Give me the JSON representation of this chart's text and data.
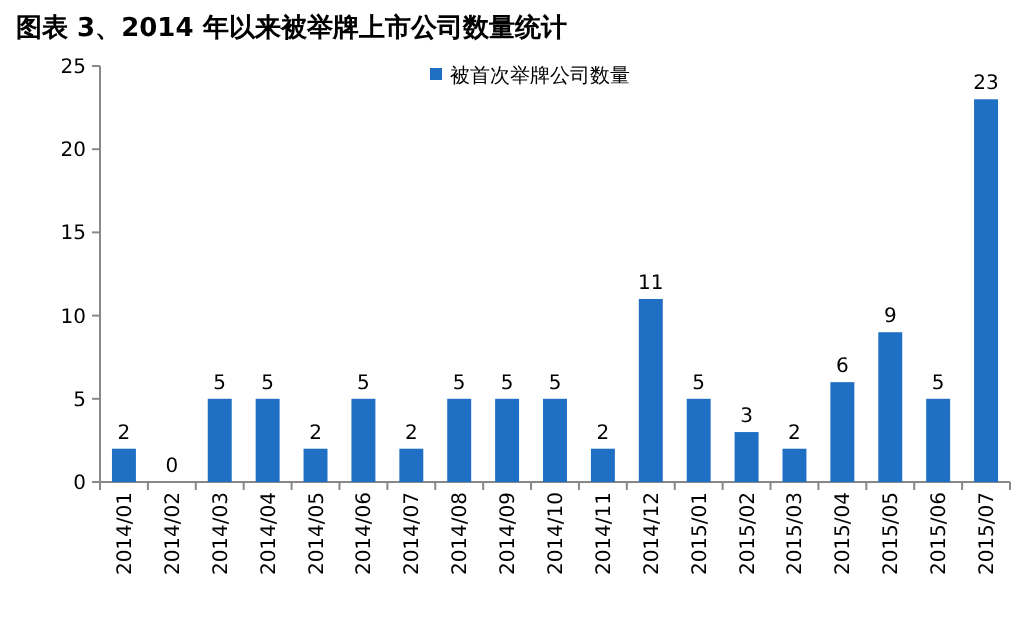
{
  "chart_data": {
    "type": "bar",
    "title": "图表 3、2014 年以来被举牌上市公司数量统计",
    "categories": [
      "2014/01",
      "2014/02",
      "2014/03",
      "2014/04",
      "2014/05",
      "2014/06",
      "2014/07",
      "2014/08",
      "2014/09",
      "2014/10",
      "2014/11",
      "2014/12",
      "2015/01",
      "2015/02",
      "2015/03",
      "2015/04",
      "2015/05",
      "2015/06",
      "2015/07"
    ],
    "series": [
      {
        "name": "被首次举牌公司数量",
        "color": "#1f6fc5",
        "values": [
          2,
          0,
          5,
          5,
          2,
          5,
          2,
          5,
          5,
          5,
          2,
          11,
          5,
          3,
          2,
          6,
          9,
          5,
          23
        ]
      }
    ],
    "ylim": [
      0,
      25
    ],
    "yticks": [
      0,
      5,
      10,
      15,
      20,
      25
    ],
    "data_labels": true,
    "legend": "top",
    "grid": false
  }
}
